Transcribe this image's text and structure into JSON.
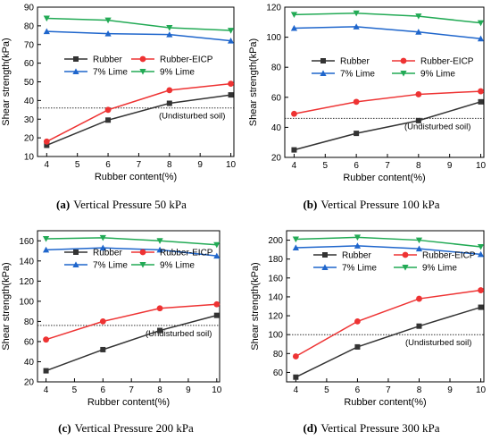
{
  "figure": {
    "panels": [
      {
        "caption_label": "(a)",
        "caption_text": "Vertical Pressure 50 kPa"
      },
      {
        "caption_label": "(b)",
        "caption_text": "Vertical Pressure 100 kPa"
      },
      {
        "caption_label": "(c)",
        "caption_text": "Vertical Pressure 200 kPa"
      },
      {
        "caption_label": "(d)",
        "caption_text": "Vertical Pressure 300 kPa"
      }
    ]
  },
  "chart_data": [
    {
      "type": "line",
      "xlabel": "Rubber content(%)",
      "ylabel": "Shear strength(kPa)",
      "x": [
        4,
        6,
        8,
        10
      ],
      "xlim": [
        3.7,
        10.1
      ],
      "xticks": [
        4,
        5,
        6,
        7,
        8,
        9,
        10
      ],
      "ylim": [
        10,
        90
      ],
      "yticks": [
        10,
        20,
        30,
        40,
        50,
        60,
        70,
        80,
        90
      ],
      "series": [
        {
          "name": "Rubber",
          "color": "#333333",
          "marker": "square",
          "values": [
            16,
            29.5,
            38.5,
            43
          ]
        },
        {
          "name": "Rubber-EICP",
          "color": "#ee3333",
          "marker": "circle",
          "values": [
            18,
            35,
            45.5,
            49
          ]
        },
        {
          "name": "7% Lime",
          "color": "#1f66cc",
          "marker": "triangle-up",
          "values": [
            77,
            75.8,
            75.3,
            72
          ]
        },
        {
          "name": "9% Lime",
          "color": "#22aa55",
          "marker": "triangle-down",
          "values": [
            84,
            83,
            79,
            77.5
          ]
        }
      ],
      "reference": {
        "label": "(Undisturbed soil)",
        "value": 36
      }
    },
    {
      "type": "line",
      "xlabel": "Rubber content(%)",
      "ylabel": "Shear strength(kPa)",
      "x": [
        4,
        6,
        8,
        10
      ],
      "xlim": [
        3.7,
        10.1
      ],
      "xticks": [
        4,
        5,
        6,
        7,
        8,
        9,
        10
      ],
      "ylim": [
        20,
        120
      ],
      "yticks": [
        20,
        40,
        60,
        80,
        100,
        120
      ],
      "series": [
        {
          "name": "Rubber",
          "color": "#333333",
          "marker": "square",
          "values": [
            25,
            36,
            44.5,
            57
          ]
        },
        {
          "name": "Rubber-EICP",
          "color": "#ee3333",
          "marker": "circle",
          "values": [
            49,
            57,
            62,
            64
          ]
        },
        {
          "name": "7% Lime",
          "color": "#1f66cc",
          "marker": "triangle-up",
          "values": [
            106,
            107,
            103.5,
            99
          ]
        },
        {
          "name": "9% Lime",
          "color": "#22aa55",
          "marker": "triangle-down",
          "values": [
            115,
            116,
            114,
            109.5
          ]
        }
      ],
      "reference": {
        "label": "(Undisturbed soil)",
        "value": 46
      }
    },
    {
      "type": "line",
      "xlabel": "Rubber content(%)",
      "ylabel": "Shear strength(kPa)",
      "x": [
        4,
        6,
        8,
        10
      ],
      "xlim": [
        3.7,
        10.1
      ],
      "xticks": [
        4,
        5,
        6,
        7,
        8,
        9,
        10
      ],
      "ylim": [
        20,
        170
      ],
      "yticks": [
        20,
        40,
        60,
        80,
        100,
        120,
        140,
        160
      ],
      "series": [
        {
          "name": "Rubber",
          "color": "#333333",
          "marker": "square",
          "values": [
            31,
            52,
            71,
            86
          ]
        },
        {
          "name": "Rubber-EICP",
          "color": "#ee3333",
          "marker": "circle",
          "values": [
            62,
            80,
            93,
            97
          ]
        },
        {
          "name": "7% Lime",
          "color": "#1f66cc",
          "marker": "triangle-up",
          "values": [
            151,
            153,
            151,
            145
          ]
        },
        {
          "name": "9% Lime",
          "color": "#22aa55",
          "marker": "triangle-down",
          "values": [
            162,
            163,
            160,
            156
          ]
        }
      ],
      "reference": {
        "label": "(Undisturbed soil)",
        "value": 76
      }
    },
    {
      "type": "line",
      "xlabel": "Rubber content(%)",
      "ylabel": "Shear strength(kPa)",
      "x": [
        4,
        6,
        8,
        10
      ],
      "xlim": [
        3.7,
        10.1
      ],
      "xticks": [
        4,
        5,
        6,
        7,
        8,
        9,
        10
      ],
      "ylim": [
        50,
        210
      ],
      "yticks": [
        60,
        80,
        100,
        120,
        140,
        160,
        180,
        200
      ],
      "series": [
        {
          "name": "Rubber",
          "color": "#333333",
          "marker": "square",
          "values": [
            55,
            87,
            109,
            129
          ]
        },
        {
          "name": "Rubber-EICP",
          "color": "#ee3333",
          "marker": "circle",
          "values": [
            77,
            114,
            138,
            147
          ]
        },
        {
          "name": "7% Lime",
          "color": "#1f66cc",
          "marker": "triangle-up",
          "values": [
            192,
            194,
            191,
            185
          ]
        },
        {
          "name": "9% Lime",
          "color": "#22aa55",
          "marker": "triangle-down",
          "values": [
            201,
            203,
            200,
            193
          ]
        }
      ],
      "reference": {
        "label": "(Undisturbed soil)",
        "value": 100
      }
    }
  ]
}
